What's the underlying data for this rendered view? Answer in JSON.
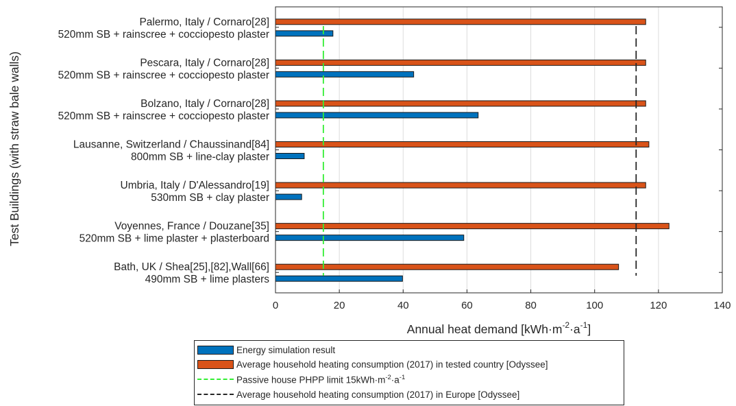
{
  "chart_data": {
    "type": "bar",
    "orientation": "horizontal",
    "xlabel": "Annual heat demand [kWh·m⁻²·a⁻¹]",
    "xlabel_parts": {
      "base": "Annual heat demand [kWh·m",
      "exp1": "-2",
      "mid": "·a",
      "exp2": "-1",
      "end": "]"
    },
    "ylabel": "Test Buildings (with straw bale walls)",
    "xlim": [
      0,
      140
    ],
    "xticks": [
      0,
      20,
      40,
      60,
      80,
      100,
      120,
      140
    ],
    "grid": true,
    "legend_position": "below",
    "categories": [
      {
        "location": "Palermo, Italy / Cornaro[28]",
        "construction": "520mm SB + rainscree + cocciopesto plaster"
      },
      {
        "location": "Pescara, Italy / Cornaro[28]",
        "construction": "520mm SB + rainscree + cocciopesto plaster"
      },
      {
        "location": "Bolzano, Italy / Cornaro[28]",
        "construction": "520mm SB + rainscree + cocciopesto plaster"
      },
      {
        "location": "Lausanne, Switzerland / Chaussinand[84]",
        "construction": "800mm SB + line-clay plaster"
      },
      {
        "location": "Umbria, Italy / D'Alessandro[19]",
        "construction": "530mm SB + clay plaster"
      },
      {
        "location": "Voyennes, France / Douzane[35]",
        "construction": "520mm SB + lime plaster + plasterboard"
      },
      {
        "location": "Bath, UK / Shea[25],[82],Wall[66]",
        "construction": "490mm SB + lime plasters"
      }
    ],
    "series": [
      {
        "name": "Energy simulation result",
        "color": "#0072BD",
        "values": [
          18,
          43.3,
          63.5,
          9,
          8.2,
          59,
          39.8
        ]
      },
      {
        "name": "Average household heating consumption (2017) in tested country [Odyssee]",
        "color": "#D95319",
        "values": [
          116,
          116,
          116,
          117,
          116,
          123.3,
          107.5
        ]
      }
    ],
    "reference_lines": [
      {
        "name": "Passive house PHPP limit 15kWh·m⁻²·a⁻¹",
        "value": 15,
        "color": "#33ee33",
        "style": "dashed"
      },
      {
        "name": "Average household heating consumption (2017) in Europe [Odyssee]",
        "value": 113,
        "color": "#262626",
        "style": "dashed"
      }
    ]
  },
  "legend": {
    "sim": "Energy simulation result",
    "country": "Average household heating consumption (2017) in tested country [Odyssee]",
    "passive_base": "Passive house PHPP limit 15kWh·m",
    "passive_exp1": "-2",
    "passive_mid": "·a",
    "passive_exp2": "-1",
    "europe": "Average household heating consumption (2017) in Europe [Odyssee]"
  }
}
